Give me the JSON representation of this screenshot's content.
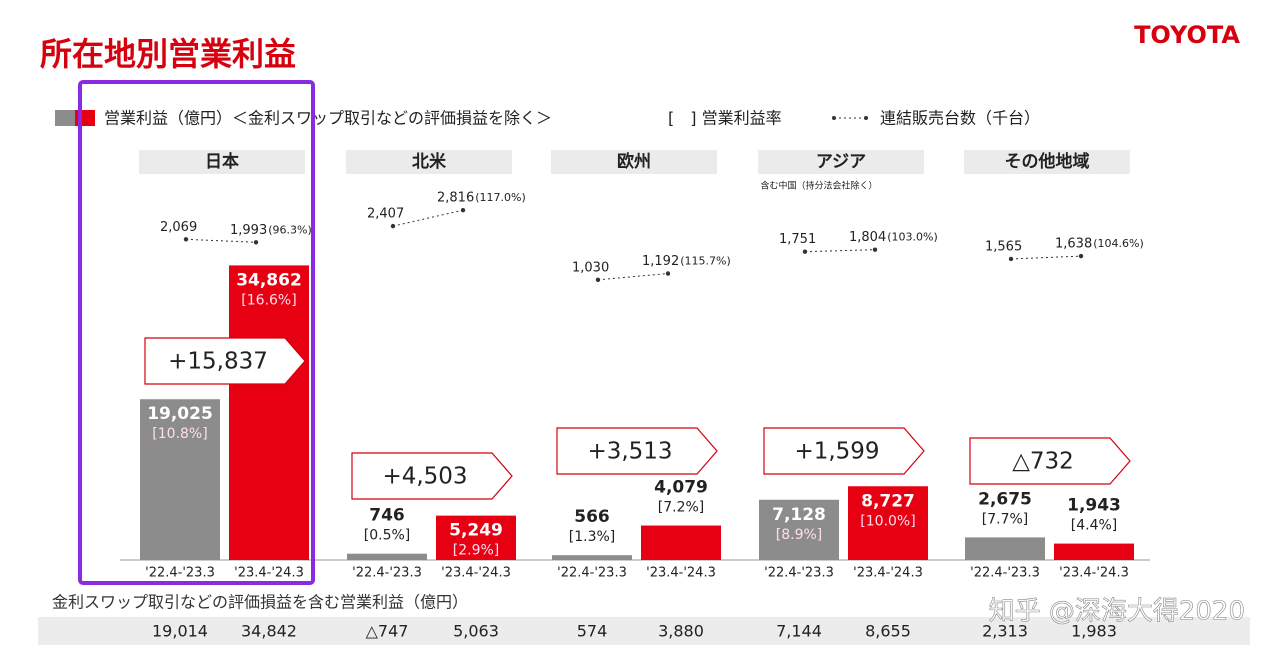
{
  "header": {
    "title": "所在地別営業利益",
    "logo": "TOYOTA"
  },
  "legend": {
    "profit": "営業利益（億円）＜金利スワップ取引などの評価損益を除く＞",
    "margin": "[　] 営業利益率",
    "units": "連結販売台数（千台）"
  },
  "chart_data": [
    {
      "type": "bar",
      "title": "日本",
      "categories": [
        "'22.4-'23.3",
        "'23.4-'24.3"
      ],
      "values": [
        19025,
        34862
      ],
      "value_labels": [
        "19,025",
        "34,862"
      ],
      "margin_labels": [
        "[10.8%]",
        "[16.6%]"
      ],
      "colors": [
        "#8c8c8c",
        "#e60012"
      ],
      "change_label": "+15,837",
      "units": [
        2069,
        1993
      ],
      "units_labels": [
        "2,069",
        "1,993"
      ],
      "units_ratio_label": "(96.3%)",
      "ylim": [
        0,
        40000
      ],
      "units_ylim": [
        0,
        3000
      ]
    },
    {
      "type": "bar",
      "title": "北米",
      "categories": [
        "'22.4-'23.3",
        "'23.4-'24.3"
      ],
      "values": [
        746,
        5249
      ],
      "value_labels": [
        "746",
        "5,249"
      ],
      "margin_labels": [
        "[0.5%]",
        "[2.9%]"
      ],
      "colors": [
        "#8c8c8c",
        "#e60012"
      ],
      "change_label": "+4,503",
      "units": [
        2407,
        2816
      ],
      "units_labels": [
        "2,407",
        "2,816"
      ],
      "units_ratio_label": "(117.0%)",
      "ylim": [
        0,
        40000
      ],
      "units_ylim": [
        0,
        3000
      ]
    },
    {
      "type": "bar",
      "title": "欧州",
      "categories": [
        "'22.4-'23.3",
        "'23.4-'24.3"
      ],
      "values": [
        566,
        4079
      ],
      "value_labels": [
        "566",
        "4,079"
      ],
      "margin_labels": [
        "[1.3%]",
        "[7.2%]"
      ],
      "colors": [
        "#8c8c8c",
        "#e60012"
      ],
      "change_label": "+3,513",
      "units": [
        1030,
        1192
      ],
      "units_labels": [
        "1,030",
        "1,192"
      ],
      "units_ratio_label": "(115.7%)",
      "ylim": [
        0,
        40000
      ],
      "units_ylim": [
        0,
        3000
      ]
    },
    {
      "type": "bar",
      "title": "アジア",
      "subtitle": "含む中国（持分法会社除く）",
      "categories": [
        "'22.4-'23.3",
        "'23.4-'24.3"
      ],
      "values": [
        7128,
        8727
      ],
      "value_labels": [
        "7,128",
        "8,727"
      ],
      "margin_labels": [
        "[8.9%]",
        "[10.0%]"
      ],
      "colors": [
        "#8c8c8c",
        "#e60012"
      ],
      "change_label": "+1,599",
      "units": [
        1751,
        1804
      ],
      "units_labels": [
        "1,751",
        "1,804"
      ],
      "units_ratio_label": "(103.0%)",
      "ylim": [
        0,
        40000
      ],
      "units_ylim": [
        0,
        3000
      ]
    },
    {
      "type": "bar",
      "title": "その他地域",
      "categories": [
        "'22.4-'23.3",
        "'23.4-'24.3"
      ],
      "values": [
        2675,
        1943
      ],
      "value_labels": [
        "2,675",
        "1,943"
      ],
      "margin_labels": [
        "[7.7%]",
        "[4.4%]"
      ],
      "colors": [
        "#8c8c8c",
        "#e60012"
      ],
      "change_label": "△732",
      "units": [
        1565,
        1638
      ],
      "units_labels": [
        "1,565",
        "1,638"
      ],
      "units_ratio_label": "(104.6%)",
      "ylim": [
        0,
        40000
      ],
      "units_ylim": [
        0,
        3000
      ]
    }
  ],
  "footer": {
    "caption": "金利スワップ取引などの評価損益を含む営業利益（億円）",
    "rows": [
      [
        "19,014",
        "34,842"
      ],
      [
        "△747",
        "5,063"
      ],
      [
        "574",
        "3,880"
      ],
      [
        "7,144",
        "8,655"
      ],
      [
        "2,313",
        "1,983"
      ]
    ]
  },
  "watermark": "知乎 @深海大得2020"
}
